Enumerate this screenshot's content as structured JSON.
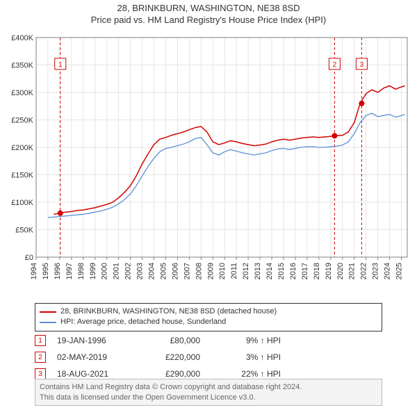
{
  "title": "28, BRINKBURN, WASHINGTON, NE38 8SD",
  "subtitle": "Price paid vs. HM Land Registry's House Price Index (HPI)",
  "chart": {
    "type": "line",
    "background_color": "#ffffff",
    "plot_border_color": "#808080",
    "grid_color": "#e5e5e5",
    "x_years": [
      1994,
      1995,
      1996,
      1997,
      1998,
      1999,
      2000,
      2001,
      2002,
      2003,
      2004,
      2005,
      2006,
      2007,
      2008,
      2009,
      2010,
      2011,
      2012,
      2013,
      2014,
      2015,
      2016,
      2017,
      2018,
      2019,
      2020,
      2021,
      2022,
      2023,
      2024,
      2025
    ],
    "x_range": [
      1994,
      2025.5
    ],
    "ylim": [
      0,
      400000
    ],
    "ytick_step": 50000,
    "ytick_labels": [
      "£0",
      "£50K",
      "£100K",
      "£150K",
      "£200K",
      "£250K",
      "£300K",
      "£350K",
      "£400K"
    ],
    "series": [
      {
        "name": "property",
        "label": "28, BRINKBURN, WASHINGTON, NE38 8SD (detached house)",
        "color": "#d40000",
        "line_width": 1.5,
        "points": [
          [
            1995.5,
            78000
          ],
          [
            1996.0,
            80000
          ],
          [
            1996.5,
            82000
          ],
          [
            1997.0,
            83000
          ],
          [
            1997.5,
            85000
          ],
          [
            1998.0,
            86000
          ],
          [
            1998.5,
            88000
          ],
          [
            1999.0,
            90000
          ],
          [
            1999.5,
            93000
          ],
          [
            2000.0,
            96000
          ],
          [
            2000.5,
            100000
          ],
          [
            2001.0,
            108000
          ],
          [
            2001.5,
            118000
          ],
          [
            2002.0,
            130000
          ],
          [
            2002.5,
            148000
          ],
          [
            2003.0,
            170000
          ],
          [
            2003.5,
            188000
          ],
          [
            2004.0,
            205000
          ],
          [
            2004.5,
            215000
          ],
          [
            2005.0,
            218000
          ],
          [
            2005.5,
            222000
          ],
          [
            2006.0,
            225000
          ],
          [
            2006.5,
            228000
          ],
          [
            2007.0,
            232000
          ],
          [
            2007.5,
            236000
          ],
          [
            2008.0,
            238000
          ],
          [
            2008.5,
            228000
          ],
          [
            2009.0,
            210000
          ],
          [
            2009.5,
            205000
          ],
          [
            2010.0,
            208000
          ],
          [
            2010.5,
            212000
          ],
          [
            2011.0,
            210000
          ],
          [
            2011.5,
            207000
          ],
          [
            2012.0,
            205000
          ],
          [
            2012.5,
            203000
          ],
          [
            2013.0,
            204000
          ],
          [
            2013.5,
            206000
          ],
          [
            2014.0,
            210000
          ],
          [
            2014.5,
            213000
          ],
          [
            2015.0,
            215000
          ],
          [
            2015.5,
            213000
          ],
          [
            2016.0,
            215000
          ],
          [
            2016.5,
            217000
          ],
          [
            2017.0,
            218000
          ],
          [
            2017.5,
            219000
          ],
          [
            2018.0,
            218000
          ],
          [
            2018.5,
            219000
          ],
          [
            2019.0,
            220000
          ],
          [
            2019.5,
            221000
          ],
          [
            2020.0,
            222000
          ],
          [
            2020.5,
            228000
          ],
          [
            2021.0,
            245000
          ],
          [
            2021.5,
            280000
          ],
          [
            2022.0,
            298000
          ],
          [
            2022.5,
            305000
          ],
          [
            2023.0,
            300000
          ],
          [
            2023.5,
            308000
          ],
          [
            2024.0,
            312000
          ],
          [
            2024.5,
            306000
          ],
          [
            2025.0,
            310000
          ],
          [
            2025.3,
            312000
          ]
        ]
      },
      {
        "name": "hpi",
        "label": "HPI: Average price, detached house, Sunderland",
        "color": "#5b8fd6",
        "line_width": 1.3,
        "points": [
          [
            1995.0,
            72000
          ],
          [
            1995.5,
            73000
          ],
          [
            1996.0,
            74000
          ],
          [
            1996.5,
            75000
          ],
          [
            1997.0,
            76000
          ],
          [
            1997.5,
            77000
          ],
          [
            1998.0,
            78000
          ],
          [
            1998.5,
            80000
          ],
          [
            1999.0,
            82000
          ],
          [
            1999.5,
            84000
          ],
          [
            2000.0,
            87000
          ],
          [
            2000.5,
            91000
          ],
          [
            2001.0,
            97000
          ],
          [
            2001.5,
            105000
          ],
          [
            2002.0,
            115000
          ],
          [
            2002.5,
            130000
          ],
          [
            2003.0,
            148000
          ],
          [
            2003.5,
            165000
          ],
          [
            2004.0,
            180000
          ],
          [
            2004.5,
            192000
          ],
          [
            2005.0,
            198000
          ],
          [
            2005.5,
            200000
          ],
          [
            2006.0,
            203000
          ],
          [
            2006.5,
            206000
          ],
          [
            2007.0,
            210000
          ],
          [
            2007.5,
            216000
          ],
          [
            2008.0,
            218000
          ],
          [
            2008.5,
            205000
          ],
          [
            2009.0,
            190000
          ],
          [
            2009.5,
            186000
          ],
          [
            2010.0,
            192000
          ],
          [
            2010.5,
            196000
          ],
          [
            2011.0,
            193000
          ],
          [
            2011.5,
            190000
          ],
          [
            2012.0,
            188000
          ],
          [
            2012.5,
            186000
          ],
          [
            2013.0,
            188000
          ],
          [
            2013.5,
            190000
          ],
          [
            2014.0,
            194000
          ],
          [
            2014.5,
            197000
          ],
          [
            2015.0,
            198000
          ],
          [
            2015.5,
            196000
          ],
          [
            2016.0,
            198000
          ],
          [
            2016.5,
            200000
          ],
          [
            2017.0,
            201000
          ],
          [
            2017.5,
            201000
          ],
          [
            2018.0,
            200000
          ],
          [
            2018.5,
            200000
          ],
          [
            2019.0,
            201000
          ],
          [
            2019.5,
            202000
          ],
          [
            2020.0,
            204000
          ],
          [
            2020.5,
            210000
          ],
          [
            2021.0,
            225000
          ],
          [
            2021.5,
            245000
          ],
          [
            2022.0,
            258000
          ],
          [
            2022.5,
            262000
          ],
          [
            2023.0,
            256000
          ],
          [
            2023.5,
            258000
          ],
          [
            2024.0,
            260000
          ],
          [
            2024.5,
            255000
          ],
          [
            2025.0,
            258000
          ],
          [
            2025.3,
            260000
          ]
        ]
      }
    ],
    "transaction_markers": [
      {
        "index": "1",
        "x": 1996.05,
        "color": "#d40000",
        "show_dot": true,
        "box_y": 352000
      },
      {
        "index": "2",
        "x": 2019.33,
        "color": "#d40000",
        "show_dot": true,
        "box_y": 352000
      },
      {
        "index": "3",
        "x": 2021.63,
        "color": "#d40000",
        "show_dot": true,
        "box_y": 352000
      }
    ],
    "marker_dot_radius": 4,
    "marker_dashed_color": "#d40000",
    "axis_font_size": 11
  },
  "legend": {
    "items": [
      {
        "color": "#d40000",
        "text": "28, BRINKBURN, WASHINGTON, NE38 8SD (detached house)"
      },
      {
        "color": "#5b8fd6",
        "text": "HPI: Average price, detached house, Sunderland"
      }
    ]
  },
  "transactions": [
    {
      "index": "1",
      "date": "19-JAN-1996",
      "price": "£80,000",
      "change": "9% ↑ HPI",
      "color": "#d40000"
    },
    {
      "index": "2",
      "date": "02-MAY-2019",
      "price": "£220,000",
      "change": "3% ↑ HPI",
      "color": "#d40000"
    },
    {
      "index": "3",
      "date": "18-AUG-2021",
      "price": "£290,000",
      "change": "22% ↑ HPI",
      "color": "#d40000"
    }
  ],
  "footer": {
    "line1": "Contains HM Land Registry data © Crown copyright and database right 2024.",
    "line2": "This data is licensed under the Open Government Licence v3.0."
  }
}
